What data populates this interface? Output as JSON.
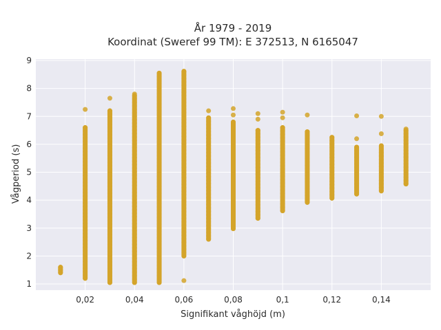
{
  "chart_data": {
    "type": "scatter",
    "title_lines": [
      "År 1979 - 2019",
      "Koordinat (Sweref 99 TM): E 372513, N 6165047"
    ],
    "xlabel": "Signifikant våghöjd (m)",
    "ylabel": "Vågperiod (s)",
    "xlim": [
      0.0,
      0.16
    ],
    "ylim": [
      0.78,
      9.05
    ],
    "x_ticks": [
      0.02,
      0.04,
      0.06,
      0.08,
      0.1,
      0.12,
      0.14
    ],
    "x_tick_labels": [
      "0,02",
      "0,04",
      "0,06",
      "0,08",
      "0,1",
      "0,12",
      "0,14"
    ],
    "y_ticks": [
      1,
      2,
      3,
      4,
      5,
      6,
      7,
      8,
      9
    ],
    "y_tick_labels": [
      "1",
      "2",
      "3",
      "4",
      "5",
      "6",
      "7",
      "8",
      "9"
    ],
    "grid": true,
    "colors": {
      "background": "#eaeaf2",
      "grid": "#ffffff",
      "marker": "#d4a42a"
    },
    "columns": [
      {
        "x": 0.01,
        "dense": [
          [
            1.4,
            1.6
          ]
        ],
        "isolated": []
      },
      {
        "x": 0.02,
        "dense": [
          [
            1.2,
            6.6
          ]
        ],
        "isolated": [
          7.25
        ]
      },
      {
        "x": 0.03,
        "dense": [
          [
            1.05,
            7.2
          ]
        ],
        "isolated": [
          7.65
        ]
      },
      {
        "x": 0.04,
        "dense": [
          [
            1.05,
            7.75
          ]
        ],
        "isolated": [
          7.8
        ]
      },
      {
        "x": 0.05,
        "dense": [
          [
            1.05,
            8.55
          ]
        ],
        "isolated": []
      },
      {
        "x": 0.06,
        "dense": [
          [
            2.0,
            8.6
          ]
        ],
        "isolated": [
          1.12,
          8.62
        ]
      },
      {
        "x": 0.07,
        "dense": [
          [
            2.6,
            6.95
          ]
        ],
        "isolated": [
          7.2
        ]
      },
      {
        "x": 0.08,
        "dense": [
          [
            2.98,
            6.8
          ]
        ],
        "isolated": [
          7.05,
          7.28
        ]
      },
      {
        "x": 0.09,
        "dense": [
          [
            3.35,
            6.5
          ]
        ],
        "isolated": [
          6.9,
          7.1
        ]
      },
      {
        "x": 0.1,
        "dense": [
          [
            3.62,
            6.6
          ]
        ],
        "isolated": [
          6.95,
          7.15
        ]
      },
      {
        "x": 0.11,
        "dense": [
          [
            3.92,
            6.45
          ]
        ],
        "isolated": [
          7.05
        ]
      },
      {
        "x": 0.12,
        "dense": [
          [
            4.07,
            6.25
          ]
        ],
        "isolated": []
      },
      {
        "x": 0.13,
        "dense": [
          [
            4.22,
            5.9
          ]
        ],
        "isolated": [
          6.2,
          7.02
        ]
      },
      {
        "x": 0.14,
        "dense": [
          [
            4.33,
            5.95
          ]
        ],
        "isolated": [
          6.38,
          7.0
        ]
      },
      {
        "x": 0.15,
        "dense": [
          [
            4.58,
            6.5
          ]
        ],
        "isolated": [
          6.55
        ]
      }
    ]
  }
}
